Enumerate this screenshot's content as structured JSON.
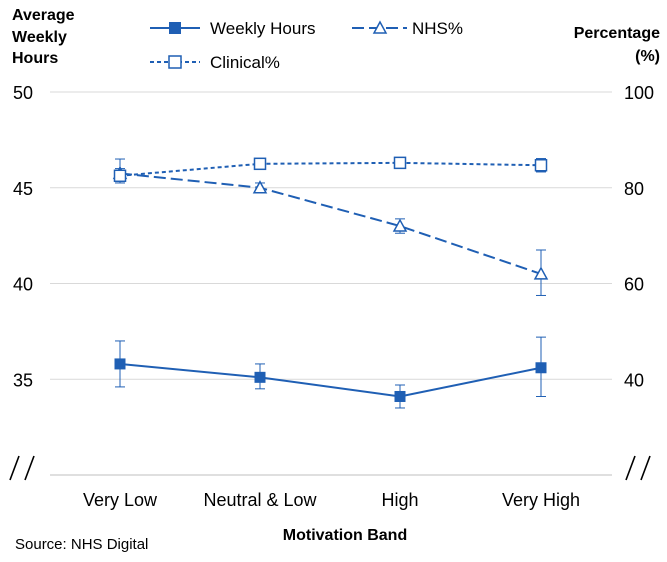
{
  "chart_data": {
    "type": "line",
    "categories": [
      "Very Low",
      "Neutral & Low",
      "High",
      "Very High"
    ],
    "xlabel": "Motivation Band",
    "ylabel_left": [
      "Average",
      "Weekly",
      "Hours"
    ],
    "ylabel_right": [
      "Percentage",
      "(%)"
    ],
    "ylim_left": [
      30,
      50
    ],
    "ylim_right": [
      20,
      100
    ],
    "yticks_left": [
      35,
      40,
      45,
      50
    ],
    "yticks_right": [
      40,
      60,
      80,
      100
    ],
    "axis_break": true,
    "grid": true,
    "legend_position": "top",
    "colors": {
      "series": "#1F5FB4",
      "grid": "#D9D9D9",
      "axis": "#BFBFBF"
    },
    "series": [
      {
        "name": "Weekly Hours",
        "axis": "left",
        "style": "solid",
        "marker": "filled-square",
        "values": [
          35.8,
          35.1,
          34.1,
          35.6
        ],
        "err_low": [
          34.6,
          34.5,
          33.5,
          34.1
        ],
        "err_high": [
          37.0,
          35.8,
          34.7,
          37.2
        ]
      },
      {
        "name": "NHS%",
        "axis": "right",
        "style": "long-dash",
        "marker": "open-triangle",
        "values": [
          83,
          80,
          72,
          62
        ],
        "err_low": [
          81,
          79,
          70.5,
          57.5
        ],
        "err_high": [
          86,
          81,
          73.5,
          67
        ]
      },
      {
        "name": "Clinical%",
        "axis": "right",
        "style": "short-dash",
        "marker": "open-square",
        "values": [
          82.5,
          85,
          85.2,
          84.7
        ],
        "err_low": [
          81.5,
          84,
          84.3,
          83.3
        ],
        "err_high": [
          84,
          86,
          86,
          86.1
        ]
      }
    ],
    "annotations": [
      "Source: NHS Digital"
    ]
  }
}
